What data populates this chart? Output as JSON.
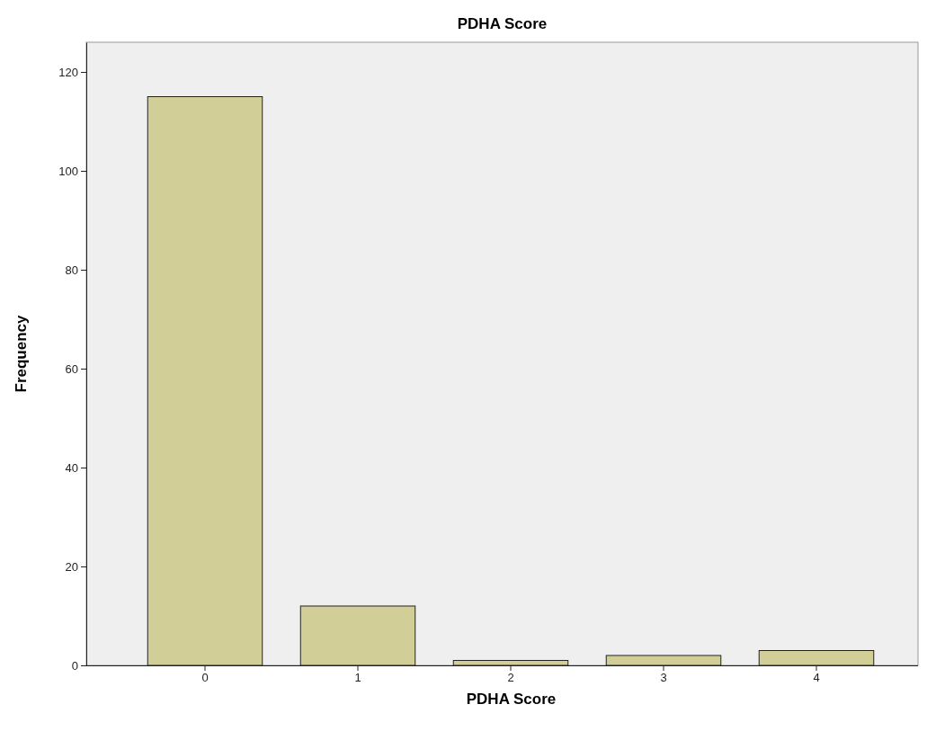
{
  "chart_data": {
    "type": "bar",
    "title": "PDHA Score",
    "xlabel": "PDHA Score",
    "ylabel": "Frequency",
    "categories": [
      "0",
      "1",
      "2",
      "3",
      "4"
    ],
    "values": [
      115,
      12,
      1,
      2,
      3
    ],
    "color": "#d2ce98",
    "ylim": [
      0,
      126
    ],
    "yticks": [
      0,
      20,
      40,
      60,
      80,
      100,
      120
    ],
    "grid": false
  }
}
